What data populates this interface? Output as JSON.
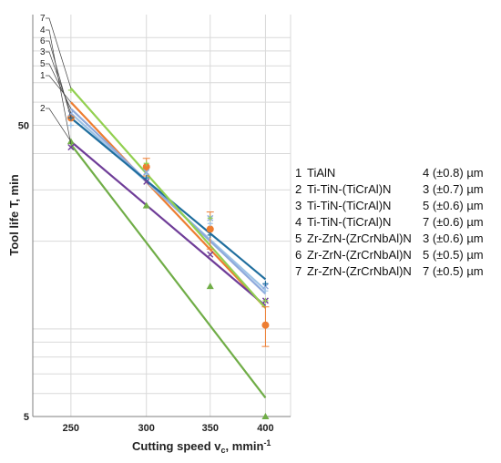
{
  "chart_data": {
    "type": "line",
    "x_scale": "log",
    "y_scale": "log",
    "xlabel": "Cutting speed v",
    "xlabel_sub": "c",
    "xlabel_unit": ", mmin",
    "xlabel_sup": "-1",
    "ylabel": "Tool life T, min",
    "x_ticks": [
      250,
      300,
      350,
      400
    ],
    "y_ticks": [
      5,
      50
    ],
    "xlim": [
      228,
      425
    ],
    "ylim": [
      5,
      120
    ],
    "grid": {
      "x": true,
      "y": true
    },
    "legend_position": "right",
    "series": [
      {
        "id": "1",
        "name": "TiAlN",
        "thickness": "4 (±0.8) µm",
        "color": "#ed7d31",
        "points": [
          {
            "x": 250,
            "y": 53
          },
          {
            "x": 300,
            "y": 36
          },
          {
            "x": 350,
            "y": 22
          },
          {
            "x": 400,
            "y": 10.3
          }
        ],
        "error": [
          0,
          2.5,
          3.2,
          1.6
        ],
        "fit": [
          {
            "x": 250,
            "y": 60
          },
          {
            "x": 400,
            "y": 11.8
          }
        ]
      },
      {
        "id": "2",
        "name": "Ti-TiN-(TiCrAl)N",
        "thickness": "3 (±0.7) µm",
        "color": "#6f3d98",
        "points": [
          {
            "x": 250,
            "y": 42
          },
          {
            "x": 300,
            "y": 32
          },
          {
            "x": 350,
            "y": 18
          },
          {
            "x": 400,
            "y": 12.5
          }
        ],
        "error": [
          0,
          0,
          0,
          0
        ],
        "fit": [
          {
            "x": 250,
            "y": 44
          },
          {
            "x": 400,
            "y": 12.0
          }
        ]
      },
      {
        "id": "3",
        "name": "Ti-TiN-(TiCrAl)N",
        "thickness": "5 (±0.6) µm",
        "color": "#9dc3e6",
        "points": [
          {
            "x": 250,
            "y": 50
          },
          {
            "x": 300,
            "y": 34
          },
          {
            "x": 350,
            "y": 23
          },
          {
            "x": 400,
            "y": 13.5
          }
        ],
        "error": [
          0,
          0,
          0,
          0
        ],
        "fit": [
          {
            "x": 250,
            "y": 55
          },
          {
            "x": 400,
            "y": 13.6
          }
        ]
      },
      {
        "id": "4",
        "name": "Ti-TiN-(TiCrAl)N",
        "thickness": "7 (±0.6) µm",
        "color": "#70ad47",
        "points": [
          {
            "x": 250,
            "y": 44
          },
          {
            "x": 300,
            "y": 26.5
          },
          {
            "x": 350,
            "y": 14
          },
          {
            "x": 400,
            "y": 5
          }
        ],
        "error": [
          0,
          0,
          0,
          0
        ],
        "fit": [
          {
            "x": 250,
            "y": 43
          },
          {
            "x": 400,
            "y": 5.8
          }
        ]
      },
      {
        "id": "5",
        "name": "Zr-ZrN-(ZrCrNbAl)N",
        "thickness": "3 (±0.6) µm",
        "color": "#8faadc",
        "points": [
          {
            "x": 250,
            "y": 55
          },
          {
            "x": 300,
            "y": 34.5
          },
          {
            "x": 350,
            "y": 24
          },
          {
            "x": 400,
            "y": 14
          }
        ],
        "error": [
          0,
          0,
          0,
          0
        ],
        "fit": [
          {
            "x": 250,
            "y": 57
          },
          {
            "x": 400,
            "y": 13.2
          }
        ]
      },
      {
        "id": "6",
        "name": "Zr-ZrN-(ZrCrNbAl)N",
        "thickness": "5 (±0.5) µm",
        "color": "#1f6e9e",
        "points": [
          {
            "x": 250,
            "y": 53
          },
          {
            "x": 300,
            "y": 33
          },
          {
            "x": 350,
            "y": 21
          },
          {
            "x": 400,
            "y": 14.3
          }
        ],
        "error": [
          0,
          0,
          0,
          0
        ],
        "fit": [
          {
            "x": 250,
            "y": 53
          },
          {
            "x": 400,
            "y": 14.8
          }
        ]
      },
      {
        "id": "7",
        "name": "Zr-ZrN-(ZrCrNbAl)N",
        "thickness": "7 (±0.5) µm",
        "color": "#92d050",
        "points": [
          {
            "x": 250,
            "y": 66
          },
          {
            "x": 300,
            "y": 37
          },
          {
            "x": 350,
            "y": 24
          },
          {
            "x": 400,
            "y": 12.5
          }
        ],
        "error": [
          0,
          0,
          0,
          0
        ],
        "fit": [
          {
            "x": 250,
            "y": 67
          },
          {
            "x": 400,
            "y": 11.8
          }
        ]
      }
    ],
    "leader_labels": [
      "7",
      "4",
      "6",
      "3",
      "5",
      "1",
      "2"
    ]
  }
}
